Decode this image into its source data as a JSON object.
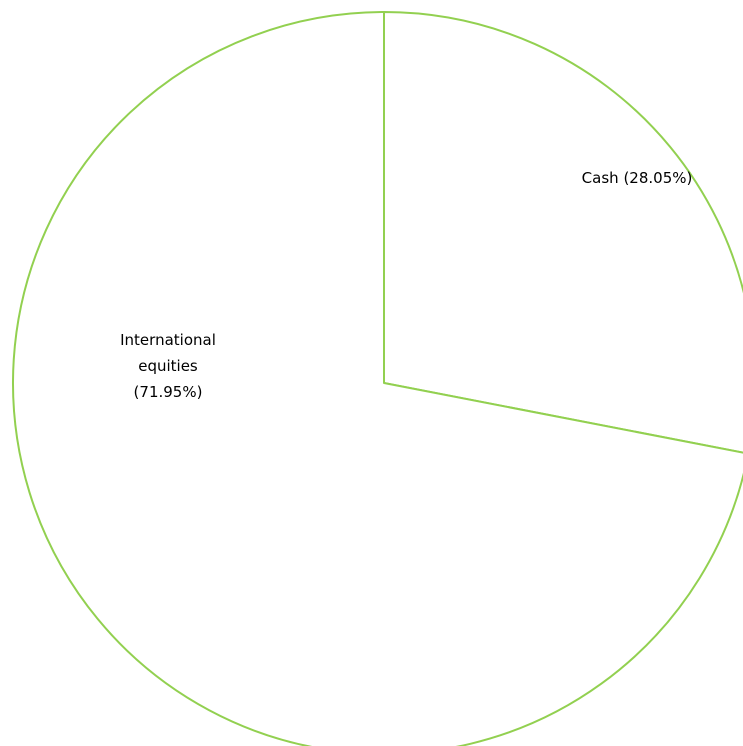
{
  "chart_data": {
    "type": "pie",
    "categories": [
      "Cash",
      "International equities"
    ],
    "values": [
      28.05,
      71.95
    ],
    "value_labels": [
      "(28.05%)",
      "(71.95%)"
    ],
    "color": "#92d050",
    "start_angle": 90,
    "direction": "clockwise"
  }
}
